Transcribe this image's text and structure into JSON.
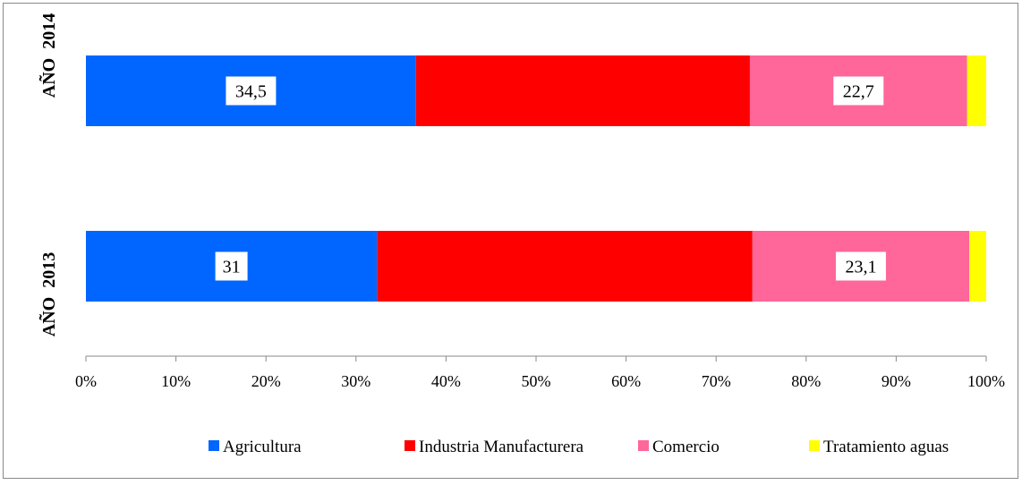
{
  "chart_data": {
    "type": "bar",
    "orientation": "horizontal",
    "stacked": "percent",
    "categories": [
      "AÑO  2014",
      "AÑO  2013"
    ],
    "series": [
      {
        "name": "Agricultura",
        "color": "#0066ff",
        "values": [
          34.5,
          31
        ],
        "labels": [
          "34,5",
          "31"
        ]
      },
      {
        "name": "Industria Manufacturera",
        "color": "#ff0000",
        "values": [
          34.9,
          40.0
        ],
        "labels": [
          "",
          ""
        ]
      },
      {
        "name": "Comercio",
        "color": "#ff6699",
        "values": [
          22.7,
          23.1
        ],
        "labels": [
          "22,7",
          "23,1"
        ]
      },
      {
        "name": "Tratamiento aguas",
        "color": "#ffff00",
        "values": [
          2.0,
          1.8
        ],
        "labels": [
          "",
          ""
        ]
      }
    ],
    "x_ticks": [
      "0%",
      "10%",
      "20%",
      "30%",
      "40%",
      "50%",
      "60%",
      "70%",
      "80%",
      "90%",
      "100%"
    ],
    "xlim": [
      0,
      100
    ],
    "grid": false,
    "legend_position": "bottom"
  }
}
